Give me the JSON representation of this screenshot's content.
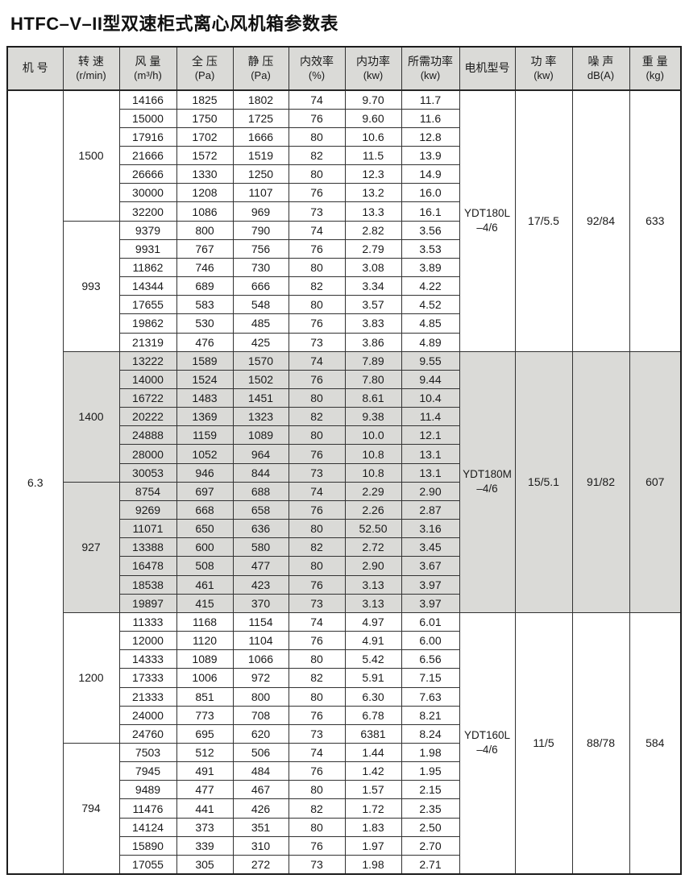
{
  "title": "HTFC–V–II型双速柜式离心风机箱参数表",
  "colors": {
    "header_bg": "#dadad7",
    "shade_bg": "#dadad7",
    "border": "#323232",
    "text": "#1a1a1a"
  },
  "table": {
    "headers": [
      {
        "line1": "机 号",
        "line2": ""
      },
      {
        "line1": "转 速",
        "line2": "(r/min)"
      },
      {
        "line1": "风 量",
        "line2": "(m³/h)"
      },
      {
        "line1": "全 压",
        "line2": "(Pa)"
      },
      {
        "line1": "静 压",
        "line2": "(Pa)"
      },
      {
        "line1": "内效率",
        "line2": "(%)"
      },
      {
        "line1": "内功率",
        "line2": "(kw)"
      },
      {
        "line1": "所需功率",
        "line2": "(kw)"
      },
      {
        "line1": "电机型号",
        "line2": ""
      },
      {
        "line1": "功 率",
        "line2": "(kw)"
      },
      {
        "line1": "噪 声",
        "line2": "dB(A)"
      },
      {
        "line1": "重 量",
        "line2": "(kg)"
      }
    ],
    "machine_no": "6.3",
    "speed_groups": [
      {
        "speed": "1500",
        "shaded": false,
        "rows": [
          [
            "14166",
            "1825",
            "1802",
            "74",
            "9.70",
            "11.7"
          ],
          [
            "15000",
            "1750",
            "1725",
            "76",
            "9.60",
            "11.6"
          ],
          [
            "17916",
            "1702",
            "1666",
            "80",
            "10.6",
            "12.8"
          ],
          [
            "21666",
            "1572",
            "1519",
            "82",
            "11.5",
            "13.9"
          ],
          [
            "26666",
            "1330",
            "1250",
            "80",
            "12.3",
            "14.9"
          ],
          [
            "30000",
            "1208",
            "1107",
            "76",
            "13.2",
            "16.0"
          ],
          [
            "32200",
            "1086",
            "969",
            "73",
            "13.3",
            "16.1"
          ]
        ]
      },
      {
        "speed": "993",
        "shaded": false,
        "rows": [
          [
            "9379",
            "800",
            "790",
            "74",
            "2.82",
            "3.56"
          ],
          [
            "9931",
            "767",
            "756",
            "76",
            "2.79",
            "3.53"
          ],
          [
            "11862",
            "746",
            "730",
            "80",
            "3.08",
            "3.89"
          ],
          [
            "14344",
            "689",
            "666",
            "82",
            "3.34",
            "4.22"
          ],
          [
            "17655",
            "583",
            "548",
            "80",
            "3.57",
            "4.52"
          ],
          [
            "19862",
            "530",
            "485",
            "76",
            "3.83",
            "4.85"
          ],
          [
            "21319",
            "476",
            "425",
            "73",
            "3.86",
            "4.89"
          ]
        ]
      },
      {
        "speed": "1400",
        "shaded": true,
        "rows": [
          [
            "13222",
            "1589",
            "1570",
            "74",
            "7.89",
            "9.55"
          ],
          [
            "14000",
            "1524",
            "1502",
            "76",
            "7.80",
            "9.44"
          ],
          [
            "16722",
            "1483",
            "1451",
            "80",
            "8.61",
            "10.4"
          ],
          [
            "20222",
            "1369",
            "1323",
            "82",
            "9.38",
            "11.4"
          ],
          [
            "24888",
            "1159",
            "1089",
            "80",
            "10.0",
            "12.1"
          ],
          [
            "28000",
            "1052",
            "964",
            "76",
            "10.8",
            "13.1"
          ],
          [
            "30053",
            "946",
            "844",
            "73",
            "10.8",
            "13.1"
          ]
        ]
      },
      {
        "speed": "927",
        "shaded": true,
        "rows": [
          [
            "8754",
            "697",
            "688",
            "74",
            "2.29",
            "2.90"
          ],
          [
            "9269",
            "668",
            "658",
            "76",
            "2.26",
            "2.87"
          ],
          [
            "11071",
            "650",
            "636",
            "80",
            "52.50",
            "3.16"
          ],
          [
            "13388",
            "600",
            "580",
            "82",
            "2.72",
            "3.45"
          ],
          [
            "16478",
            "508",
            "477",
            "80",
            "2.90",
            "3.67"
          ],
          [
            "18538",
            "461",
            "423",
            "76",
            "3.13",
            "3.97"
          ],
          [
            "19897",
            "415",
            "370",
            "73",
            "3.13",
            "3.97"
          ]
        ]
      },
      {
        "speed": "1200",
        "shaded": false,
        "rows": [
          [
            "11333",
            "1168",
            "1154",
            "74",
            "4.97",
            "6.01"
          ],
          [
            "12000",
            "1120",
            "1104",
            "76",
            "4.91",
            "6.00"
          ],
          [
            "14333",
            "1089",
            "1066",
            "80",
            "5.42",
            "6.56"
          ],
          [
            "17333",
            "1006",
            "972",
            "82",
            "5.91",
            "7.15"
          ],
          [
            "21333",
            "851",
            "800",
            "80",
            "6.30",
            "7.63"
          ],
          [
            "24000",
            "773",
            "708",
            "76",
            "6.78",
            "8.21"
          ],
          [
            "24760",
            "695",
            "620",
            "73",
            "6381",
            "8.24"
          ]
        ]
      },
      {
        "speed": "794",
        "shaded": false,
        "rows": [
          [
            "7503",
            "512",
            "506",
            "74",
            "1.44",
            "1.98"
          ],
          [
            "7945",
            "491",
            "484",
            "76",
            "1.42",
            "1.95"
          ],
          [
            "9489",
            "477",
            "467",
            "80",
            "1.57",
            "2.15"
          ],
          [
            "11476",
            "441",
            "426",
            "82",
            "1.72",
            "2.35"
          ],
          [
            "14124",
            "373",
            "351",
            "80",
            "1.83",
            "2.50"
          ],
          [
            "15890",
            "339",
            "310",
            "76",
            "1.97",
            "2.70"
          ],
          [
            "17055",
            "305",
            "272",
            "73",
            "1.98",
            "2.71"
          ]
        ]
      }
    ],
    "motor_blocks": [
      {
        "model_line1": "YDT180L",
        "model_line2": "–4/6",
        "power": "17/5.5",
        "noise": "92/84",
        "weight": "633",
        "shaded": false
      },
      {
        "model_line1": "YDT180M",
        "model_line2": "–4/6",
        "power": "15/5.1",
        "noise": "91/82",
        "weight": "607",
        "shaded": true
      },
      {
        "model_line1": "YDT160L",
        "model_line2": "–4/6",
        "power": "11/5",
        "noise": "88/78",
        "weight": "584",
        "shaded": false
      }
    ]
  }
}
